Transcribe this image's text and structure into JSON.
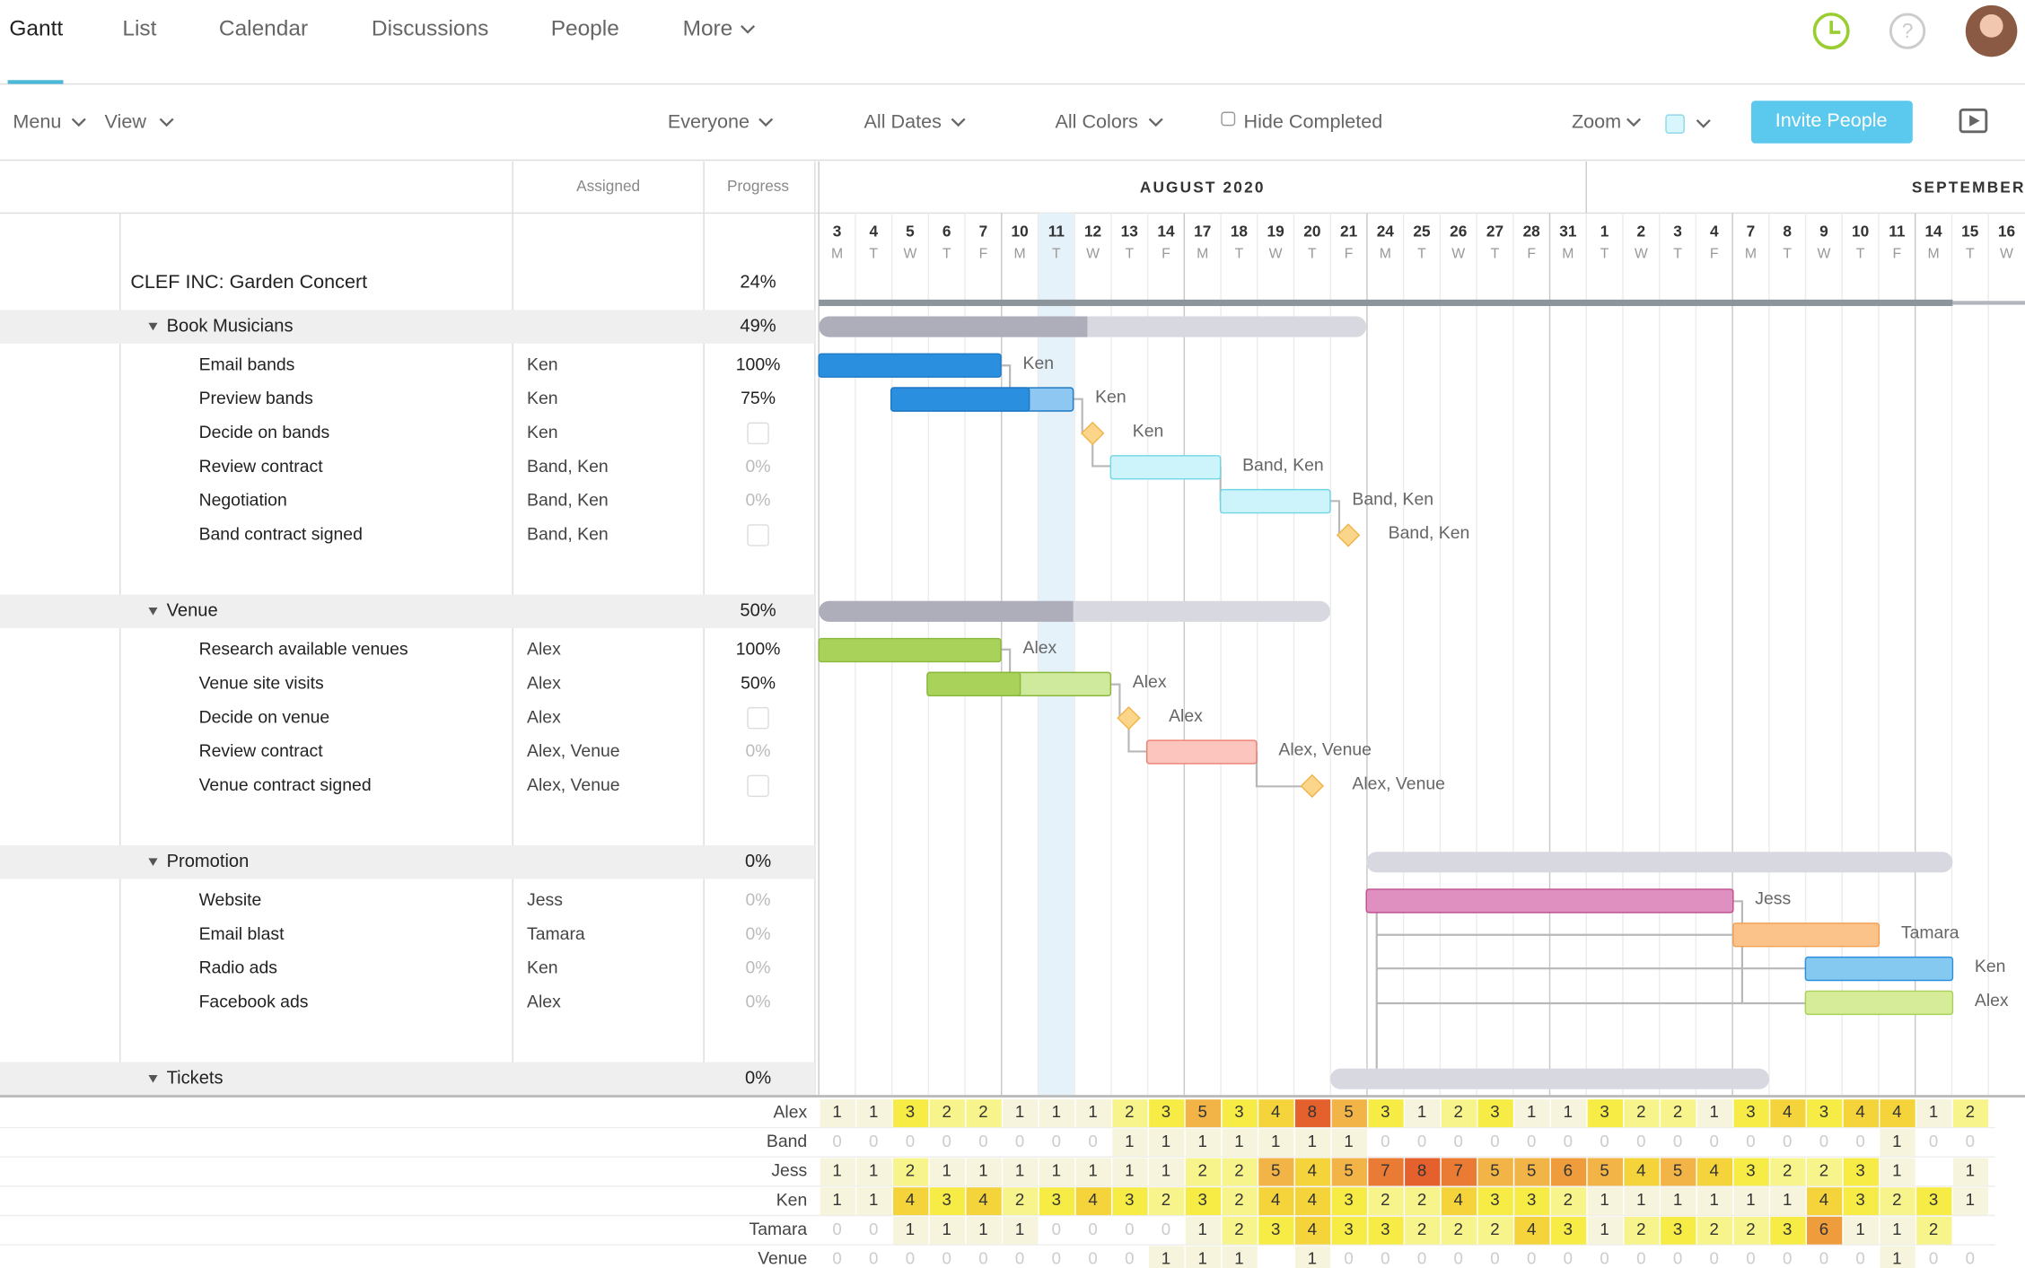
{
  "tabs": [
    "Gantt",
    "List",
    "Calendar",
    "Discussions",
    "People",
    "More"
  ],
  "toolbar": {
    "menu": "Menu",
    "view": "View",
    "everyone": "Everyone",
    "dates": "All Dates",
    "colors": "All Colors",
    "hide": "Hide Completed",
    "zoom": "Zoom",
    "invite": "Invite People"
  },
  "columns": {
    "assigned": "Assigned",
    "progress": "Progress"
  },
  "months": [
    "AUGUST 2020",
    "SEPTEMBER"
  ],
  "days": [
    3,
    4,
    5,
    6,
    7,
    10,
    11,
    12,
    13,
    14,
    17,
    18,
    19,
    20,
    21,
    24,
    25,
    26,
    27,
    28,
    31,
    1,
    2,
    3,
    4,
    7,
    8,
    9,
    10,
    11,
    14,
    15,
    16
  ],
  "weekdays": [
    "M",
    "T",
    "W",
    "T",
    "F",
    "M",
    "T",
    "W",
    "T",
    "F",
    "M",
    "T",
    "W",
    "T",
    "F",
    "M",
    "T",
    "W",
    "T",
    "F",
    "M",
    "T",
    "W",
    "T",
    "F",
    "M",
    "T",
    "W",
    "T",
    "F",
    "M",
    "T",
    "W"
  ],
  "project": {
    "name": "CLEF INC: Garden Concert",
    "progress": "24%"
  },
  "groups": [
    {
      "name": "Book Musicians",
      "progress": "49%",
      "tasks": [
        {
          "name": "Email bands",
          "assigned": "Ken",
          "progress": "100%"
        },
        {
          "name": "Preview bands",
          "assigned": "Ken",
          "progress": "75%"
        },
        {
          "name": "Decide on bands",
          "assigned": "Ken",
          "progress": null
        },
        {
          "name": "Review contract",
          "assigned": "Band, Ken",
          "progress": "0%"
        },
        {
          "name": "Negotiation",
          "assigned": "Band, Ken",
          "progress": "0%"
        },
        {
          "name": "Band contract signed",
          "assigned": "Band, Ken",
          "progress": null
        }
      ]
    },
    {
      "name": "Venue",
      "progress": "50%",
      "tasks": [
        {
          "name": "Research available venues",
          "assigned": "Alex",
          "progress": "100%"
        },
        {
          "name": "Venue site visits",
          "assigned": "Alex",
          "progress": "50%"
        },
        {
          "name": "Decide on venue",
          "assigned": "Alex",
          "progress": null
        },
        {
          "name": "Review contract",
          "assigned": "Alex, Venue",
          "progress": "0%"
        },
        {
          "name": "Venue contract signed",
          "assigned": "Alex, Venue",
          "progress": null
        }
      ]
    },
    {
      "name": "Promotion",
      "progress": "0%",
      "tasks": [
        {
          "name": "Website",
          "assigned": "Jess",
          "progress": "0%"
        },
        {
          "name": "Email blast",
          "assigned": "Tamara",
          "progress": "0%"
        },
        {
          "name": "Radio ads",
          "assigned": "Ken",
          "progress": "0%"
        },
        {
          "name": "Facebook ads",
          "assigned": "Alex",
          "progress": "0%"
        }
      ]
    },
    {
      "name": "Tickets",
      "progress": "0%",
      "tasks": []
    }
  ],
  "workload": [
    {
      "name": "Alex",
      "values": [
        1,
        1,
        3,
        2,
        2,
        1,
        1,
        1,
        2,
        3,
        5,
        3,
        4,
        8,
        5,
        3,
        1,
        2,
        3,
        1,
        1,
        3,
        2,
        2,
        1,
        3,
        4,
        3,
        4,
        4,
        1,
        2
      ]
    },
    {
      "name": "Band",
      "values": [
        0,
        0,
        0,
        0,
        0,
        0,
        0,
        0,
        1,
        1,
        1,
        1,
        1,
        1,
        1,
        0,
        0,
        0,
        0,
        0,
        0,
        0,
        0,
        0,
        0,
        0,
        0,
        0,
        0,
        1,
        0,
        0
      ]
    },
    {
      "name": "Jess",
      "values": [
        1,
        1,
        2,
        1,
        1,
        1,
        1,
        1,
        1,
        1,
        2,
        2,
        5,
        4,
        5,
        7,
        8,
        7,
        5,
        5,
        6,
        5,
        4,
        5,
        4,
        3,
        2,
        2,
        3,
        1,
        null,
        1
      ]
    },
    {
      "name": "Ken",
      "values": [
        1,
        1,
        4,
        3,
        4,
        2,
        3,
        4,
        3,
        2,
        3,
        2,
        4,
        4,
        3,
        2,
        2,
        4,
        3,
        3,
        2,
        1,
        1,
        1,
        1,
        1,
        1,
        4,
        3,
        2,
        3,
        1
      ]
    },
    {
      "name": "Tamara",
      "values": [
        0,
        0,
        1,
        1,
        1,
        1,
        0,
        0,
        0,
        0,
        1,
        2,
        3,
        4,
        3,
        3,
        2,
        2,
        2,
        4,
        3,
        1,
        2,
        3,
        2,
        2,
        3,
        6,
        1,
        1,
        2,
        null
      ]
    },
    {
      "name": "Venue",
      "values": [
        0,
        0,
        0,
        0,
        0,
        0,
        0,
        0,
        0,
        1,
        1,
        1,
        null,
        1,
        0,
        0,
        0,
        0,
        0,
        0,
        0,
        0,
        0,
        0,
        0,
        0,
        0,
        0,
        0,
        1,
        0,
        0
      ]
    }
  ]
}
